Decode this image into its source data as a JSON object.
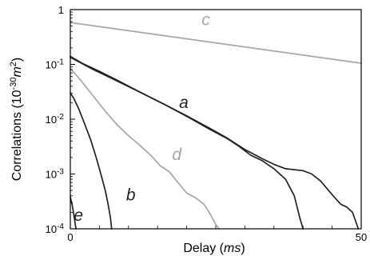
{
  "chart_data": {
    "type": "line",
    "xlabel_text": "Delay (",
    "xlabel_unit": "ms",
    "xlabel_close": ")",
    "ylabel_prefix": "Correlations (10",
    "ylabel_exp": "-30",
    "ylabel_unit": "m",
    "ylabel_unit_exp": "2",
    "ylabel_close": ")",
    "xlim": [
      0,
      50
    ],
    "ylim": [
      0.0001,
      1
    ],
    "yscale": "log",
    "x_ticks": [
      {
        "value": 0,
        "label": "0"
      },
      {
        "value": 50,
        "label": "50"
      }
    ],
    "y_ticks": [
      {
        "value": 1,
        "label": "1"
      },
      {
        "value": 0.1,
        "label": "10",
        "exp": "-1"
      },
      {
        "value": 0.01,
        "label": "10",
        "exp": "-2"
      },
      {
        "value": 0.001,
        "label": "10",
        "exp": "-3"
      },
      {
        "value": 0.0001,
        "label": "10",
        "exp": "-4"
      }
    ],
    "grid": false,
    "legend": "none",
    "series": [
      {
        "name": "a",
        "color": "#222222",
        "label_pos": {
          "x": 19.5,
          "y": 0.016
        },
        "points": [
          [
            0,
            0.14
          ],
          [
            2,
            0.105
          ],
          [
            5,
            0.075
          ],
          [
            8,
            0.052
          ],
          [
            12,
            0.031
          ],
          [
            16,
            0.019
          ],
          [
            20,
            0.0115
          ],
          [
            24,
            0.0068
          ],
          [
            27,
            0.0045
          ],
          [
            30,
            0.0028
          ],
          [
            33,
            0.0019
          ],
          [
            35,
            0.0015
          ],
          [
            37,
            0.00125
          ],
          [
            40,
            0.00115
          ],
          [
            41.5,
            0.001
          ],
          [
            43,
            0.00075
          ],
          [
            45,
            0.00042
          ],
          [
            46.5,
            0.00028
          ],
          [
            47.5,
            0.00025
          ],
          [
            48.5,
            0.0002
          ],
          [
            49.5,
            0.0001
          ]
        ]
      },
      {
        "name": "a",
        "color": "#222222",
        "points": [
          [
            0,
            0.135
          ],
          [
            4,
            0.08
          ],
          [
            8,
            0.05
          ],
          [
            12,
            0.031
          ],
          [
            16,
            0.019
          ],
          [
            20,
            0.0113
          ],
          [
            24,
            0.0065
          ],
          [
            27,
            0.0044
          ],
          [
            29,
            0.0032
          ],
          [
            31,
            0.0022
          ],
          [
            33,
            0.00175
          ],
          [
            35,
            0.00125
          ],
          [
            37,
            0.0008
          ],
          [
            38.5,
            0.0004
          ],
          [
            39.5,
            0.00015
          ],
          [
            40,
            0.0001
          ]
        ]
      },
      {
        "name": "b",
        "color": "#222222",
        "label_pos": {
          "x": 10.4,
          "y": 0.00033
        },
        "points": [
          [
            0,
            0.03
          ],
          [
            0.6,
            0.024
          ],
          [
            1.5,
            0.015
          ],
          [
            2.5,
            0.008
          ],
          [
            3.5,
            0.0042
          ],
          [
            4.5,
            0.0019
          ],
          [
            5.3,
            0.00095
          ],
          [
            6,
            0.0005
          ],
          [
            6.5,
            0.00028
          ],
          [
            6.9,
            0.00016
          ],
          [
            7.1,
            0.0001
          ]
        ]
      },
      {
        "name": "c",
        "color": "#a6a6a6",
        "label_pos": {
          "x": 23.3,
          "y": 0.52
        },
        "points": [
          [
            0,
            0.58
          ],
          [
            50,
            0.105
          ]
        ]
      },
      {
        "name": "d",
        "color": "#a6a6a6",
        "label_pos": {
          "x": 18.3,
          "y": 0.0018
        },
        "points": [
          [
            0,
            0.085
          ],
          [
            2,
            0.048
          ],
          [
            4,
            0.026
          ],
          [
            6,
            0.014
          ],
          [
            8,
            0.008
          ],
          [
            10,
            0.005
          ],
          [
            12,
            0.0033
          ],
          [
            14,
            0.0021
          ],
          [
            15.5,
            0.0014
          ],
          [
            17,
            0.0011
          ],
          [
            18.5,
            0.0007
          ],
          [
            20,
            0.00045
          ],
          [
            21.5,
            0.00037
          ],
          [
            23,
            0.00028
          ],
          [
            24,
            0.00019
          ],
          [
            25,
            0.00012
          ],
          [
            25.6,
            0.0001
          ]
        ]
      },
      {
        "name": "e",
        "color": "#222222",
        "label_pos": {
          "x": 1.4,
          "y": 0.00014
        },
        "points": [
          [
            0,
            0.00038
          ],
          [
            0.3,
            0.00028
          ],
          [
            0.6,
            0.00018
          ],
          [
            0.9,
            0.00011
          ],
          [
            1.0,
            0.0001
          ]
        ]
      }
    ]
  }
}
